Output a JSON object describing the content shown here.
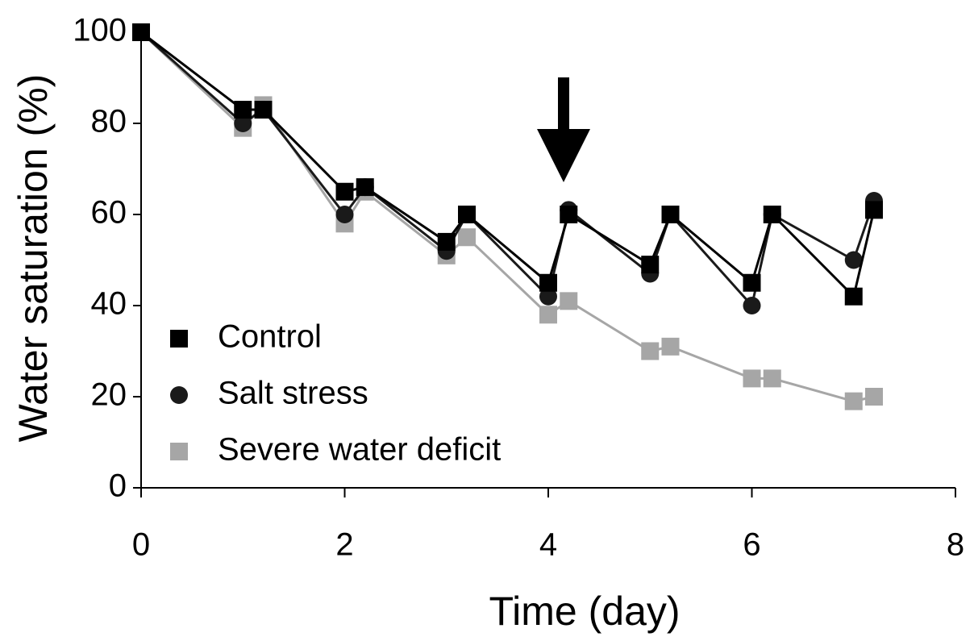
{
  "chart_data": {
    "type": "line",
    "xlabel": "Time (day)",
    "ylabel": "Water saturation (%)",
    "x": [
      0,
      1,
      1.2,
      2,
      2.2,
      3,
      3.2,
      4,
      4.2,
      5,
      5.2,
      6,
      6.2,
      7,
      7.2
    ],
    "series": [
      {
        "name": "Control",
        "color": "#000000",
        "marker": "square",
        "values": [
          100,
          83,
          83,
          65,
          66,
          54,
          60,
          45,
          60,
          49,
          60,
          45,
          60,
          42,
          61
        ]
      },
      {
        "name": "Salt stress",
        "color": "#1a1a1a",
        "marker": "circle",
        "values": [
          100,
          80,
          83,
          60,
          66,
          52,
          60,
          42,
          61,
          47,
          60,
          40,
          60,
          50,
          63
        ]
      },
      {
        "name": "Severe water deficit",
        "color": "#a6a6a6",
        "marker": "square",
        "values": [
          100,
          79,
          84,
          58,
          65,
          51,
          55,
          38,
          41,
          30,
          31,
          24,
          24,
          19,
          20
        ]
      }
    ],
    "xlim": [
      0,
      8
    ],
    "xticks": [
      0,
      2,
      4,
      6,
      8
    ],
    "ylim": [
      0,
      100
    ],
    "yticks": [
      0,
      20,
      40,
      60,
      80,
      100
    ],
    "grid": false
  }
}
